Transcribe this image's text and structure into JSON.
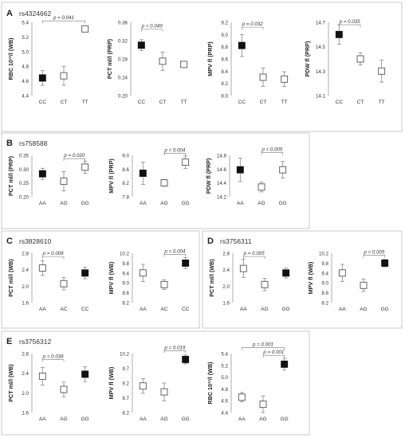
{
  "panels": [
    {
      "letter": "A",
      "snp": "rs4324662"
    },
    {
      "letter": "B",
      "snp": "rs758588"
    },
    {
      "letter": "C",
      "snp": "rs3828610"
    },
    {
      "letter": "D",
      "snp": "rs3756311"
    },
    {
      "letter": "E",
      "snp": "rs3756312"
    }
  ],
  "colors": {
    "filled": "#111111",
    "open": "#ffffff",
    "stroke": "#555555",
    "frame": "#c8c8c8",
    "error": "#888888"
  },
  "chart_data": [
    {
      "panel": "A",
      "type": "scatter",
      "categories": [
        "CC",
        "CT",
        "TT"
      ],
      "ylabel": "RBC 10¹²/l (WB)",
      "ylim": [
        4.4,
        5.4
      ],
      "yticks": [
        "4.4",
        "4.6",
        "4.8",
        "5.0",
        "5.2",
        "5.4"
      ],
      "points": [
        {
          "x": "CC",
          "y": 4.64,
          "err": 0.1,
          "filled": true
        },
        {
          "x": "CT",
          "y": 4.67,
          "err": 0.13,
          "filled": false
        },
        {
          "x": "TT",
          "y": 5.31,
          "err": 0,
          "filled": false
        }
      ],
      "annotations": [
        {
          "label": "p = 0.041",
          "from": "CC",
          "to": "TT",
          "y": 5.42
        }
      ]
    },
    {
      "panel": "A",
      "type": "scatter",
      "categories": [
        "CC",
        "CT",
        "TT"
      ],
      "ylabel": "PCT ml/l (PRP)",
      "ylim": [
        0.2,
        0.36
      ],
      "yticks": [
        "0.20",
        "0.24",
        "0.28",
        "0.32",
        "0.36"
      ],
      "points": [
        {
          "x": "CC",
          "y": 0.31,
          "err": 0.012,
          "filled": true
        },
        {
          "x": "CT",
          "y": 0.275,
          "err": 0.02,
          "filled": false
        },
        {
          "x": "TT",
          "y": 0.268,
          "err": 0,
          "filled": false
        }
      ],
      "annotations": [
        {
          "label": "p = 0.049",
          "from": "CC",
          "to": "CT",
          "y": 0.345
        }
      ]
    },
    {
      "panel": "A",
      "type": "scatter",
      "categories": [
        "CC",
        "CT",
        "TT"
      ],
      "ylabel": "MPV fl (PRP)",
      "ylim": [
        8.0,
        9.2
      ],
      "yticks": [
        "8.0",
        "8.2",
        "8.4",
        "8.6",
        "8.8",
        "9.0",
        "9.2"
      ],
      "points": [
        {
          "x": "CC",
          "y": 8.82,
          "err": 0.18,
          "filled": true
        },
        {
          "x": "CT",
          "y": 8.3,
          "err": 0.15,
          "filled": false
        },
        {
          "x": "TT",
          "y": 8.27,
          "err": 0.12,
          "filled": false
        }
      ],
      "annotations": [
        {
          "label": "p = 0.032",
          "from": "CC",
          "to": "CT",
          "y": 9.12
        }
      ]
    },
    {
      "panel": "A",
      "type": "scatter",
      "categories": [
        "CC",
        "CT",
        "TT"
      ],
      "ylabel": "PDW fl (PRP)",
      "ylim": [
        14.1,
        14.7
      ],
      "yticks": [
        "14.1",
        "14.3",
        "14.5",
        "14.7"
      ],
      "points": [
        {
          "x": "CC",
          "y": 14.6,
          "err": 0.08,
          "filled": true
        },
        {
          "x": "CT",
          "y": 14.4,
          "err": 0.05,
          "filled": false
        },
        {
          "x": "TT",
          "y": 14.3,
          "err": 0.09,
          "filled": false
        }
      ],
      "annotations": [
        {
          "label": "p = 0.035",
          "from": "CC",
          "to": "CT",
          "y": 14.68
        }
      ]
    },
    {
      "panel": "B",
      "type": "scatter",
      "categories": [
        "AA",
        "AG",
        "GG"
      ],
      "ylabel": "PCT ml/l (PRP)",
      "ylim": [
        0.2,
        0.35
      ],
      "yticks": [
        "0.20",
        "0.25",
        "0.30",
        "0.35"
      ],
      "points": [
        {
          "x": "AA",
          "y": 0.283,
          "err": 0.02,
          "filled": true
        },
        {
          "x": "AG",
          "y": 0.256,
          "err": 0.035,
          "filled": false
        },
        {
          "x": "GG",
          "y": 0.307,
          "err": 0.022,
          "filled": false
        }
      ],
      "annotations": [
        {
          "label": "p = 0.020",
          "from": "AG",
          "to": "GG",
          "y": 0.338
        }
      ]
    },
    {
      "panel": "B",
      "type": "scatter",
      "categories": [
        "AA",
        "AG",
        "GG"
      ],
      "ylabel": "MPV fl (PRP)",
      "ylim": [
        7.8,
        9.0
      ],
      "yticks": [
        "7.8",
        "8.2",
        "8.6",
        "9.0"
      ],
      "points": [
        {
          "x": "AA",
          "y": 8.48,
          "err": 0.32,
          "filled": true
        },
        {
          "x": "AG",
          "y": 8.2,
          "err": 0.1,
          "filled": false
        },
        {
          "x": "GG",
          "y": 8.8,
          "err": 0.18,
          "filled": false
        }
      ],
      "annotations": [
        {
          "label": "p = 0.004",
          "from": "AG",
          "to": "GG",
          "y": 9.06
        }
      ]
    },
    {
      "panel": "B",
      "type": "scatter",
      "categories": [
        "AA",
        "AG",
        "GG"
      ],
      "ylabel": "PDW fl (PRP)",
      "ylim": [
        14.2,
        14.8
      ],
      "yticks": [
        "14.2",
        "14.4",
        "14.6",
        "14.8"
      ],
      "points": [
        {
          "x": "AA",
          "y": 14.59,
          "err": 0.17,
          "filled": true
        },
        {
          "x": "AG",
          "y": 14.34,
          "err": 0.07,
          "filled": false
        },
        {
          "x": "GG",
          "y": 14.59,
          "err": 0.12,
          "filled": false
        }
      ],
      "annotations": [
        {
          "label": "p = 0.005",
          "from": "AG",
          "to": "GG",
          "y": 14.84
        }
      ]
    },
    {
      "panel": "C",
      "type": "scatter",
      "categories": [
        "AA",
        "AC",
        "CC"
      ],
      "ylabel": "PCT ml/l (WB)",
      "ylim": [
        1.6,
        2.8
      ],
      "yticks": [
        "1.6",
        "2.0",
        "2.4",
        "2.8"
      ],
      "points": [
        {
          "x": "AA",
          "y": 2.44,
          "err": 0.18,
          "filled": false
        },
        {
          "x": "AC",
          "y": 2.06,
          "err": 0.15,
          "filled": false
        },
        {
          "x": "CC",
          "y": 2.32,
          "err": 0.14,
          "filled": true
        }
      ],
      "annotations": [
        {
          "label": "p = 0.006",
          "from": "AA",
          "to": "AC",
          "y": 2.72
        }
      ]
    },
    {
      "panel": "C",
      "type": "scatter",
      "categories": [
        "AA",
        "AC",
        "CC"
      ],
      "ylabel": "MPV fl (WB)",
      "ylim": [
        8.2,
        10.2
      ],
      "yticks": [
        "8.2",
        "8.6",
        "9.0",
        "9.4",
        "9.8",
        "10.2"
      ],
      "points": [
        {
          "x": "AA",
          "y": 9.4,
          "err": 0.35,
          "filled": false
        },
        {
          "x": "AC",
          "y": 8.93,
          "err": 0.2,
          "filled": false
        },
        {
          "x": "CC",
          "y": 9.8,
          "err": 0.22,
          "filled": true
        }
      ],
      "annotations": [
        {
          "label": "p = 0.004",
          "from": "AC",
          "to": "CC",
          "y": 10.15
        }
      ]
    },
    {
      "panel": "D",
      "type": "scatter",
      "categories": [
        "AA",
        "AG",
        "GG"
      ],
      "ylabel": "PCT ml/l (WB)",
      "ylim": [
        1.6,
        2.8
      ],
      "yticks": [
        "1.6",
        "2.0",
        "2.4",
        "2.8"
      ],
      "points": [
        {
          "x": "AA",
          "y": 2.43,
          "err": 0.22,
          "filled": false
        },
        {
          "x": "AG",
          "y": 2.04,
          "err": 0.15,
          "filled": false
        },
        {
          "x": "GG",
          "y": 2.32,
          "err": 0.12,
          "filled": true
        }
      ],
      "annotations": [
        {
          "label": "p = 0.005",
          "from": "AA",
          "to": "AG",
          "y": 2.72
        }
      ]
    },
    {
      "panel": "D",
      "type": "scatter",
      "categories": [
        "AA",
        "AG",
        "GG"
      ],
      "ylabel": "MPV fl (WB)",
      "ylim": [
        8.2,
        10.2
      ],
      "yticks": [
        "8.2",
        "8.6",
        "9.0",
        "9.4",
        "9.8",
        "10.2"
      ],
      "points": [
        {
          "x": "AA",
          "y": 9.4,
          "err": 0.35,
          "filled": false
        },
        {
          "x": "AG",
          "y": 8.9,
          "err": 0.25,
          "filled": false
        },
        {
          "x": "GG",
          "y": 9.8,
          "err": 0.15,
          "filled": true
        }
      ],
      "annotations": [
        {
          "label": "p = 0.005",
          "from": "AG",
          "to": "GG",
          "y": 10.12
        }
      ]
    },
    {
      "panel": "E",
      "type": "scatter",
      "categories": [
        "AA",
        "AG",
        "GG"
      ],
      "ylabel": "PCT ml/l (WB)",
      "ylim": [
        1.6,
        2.8
      ],
      "yticks": [
        "1.6",
        "2.0",
        "2.4",
        "2.8"
      ],
      "points": [
        {
          "x": "AA",
          "y": 2.34,
          "err": 0.18,
          "filled": false
        },
        {
          "x": "AG",
          "y": 2.07,
          "err": 0.15,
          "filled": false
        },
        {
          "x": "GG",
          "y": 2.38,
          "err": 0.15,
          "filled": true
        }
      ],
      "annotations": [
        {
          "label": "p = 0.036",
          "from": "AA",
          "to": "AG",
          "y": 2.68
        }
      ]
    },
    {
      "panel": "E",
      "type": "scatter",
      "categories": [
        "AA",
        "AG",
        "GG"
      ],
      "ylabel": "MPV fl (WB)",
      "ylim": [
        8.2,
        10.2
      ],
      "yticks": [
        "8.2",
        "8.7",
        "9.2",
        "9.7",
        "10.2"
      ],
      "points": [
        {
          "x": "AA",
          "y": 9.1,
          "err": 0.25,
          "filled": false
        },
        {
          "x": "AG",
          "y": 8.9,
          "err": 0.3,
          "filled": false
        },
        {
          "x": "GG",
          "y": 10.0,
          "err": 0.15,
          "filled": true
        }
      ],
      "annotations": [
        {
          "label": "p = 0.019",
          "from": "AG",
          "to": "GG",
          "y": 10.3
        }
      ]
    },
    {
      "panel": "E",
      "type": "scatter",
      "categories": [
        "AA",
        "AG",
        "GG"
      ],
      "ylabel": "RBC 10¹²/l (WB)",
      "ylim": [
        4.4,
        5.4
      ],
      "yticks": [
        "4.4",
        "4.6",
        "4.8",
        "5.0",
        "5.2",
        "5.4"
      ],
      "points": [
        {
          "x": "AA",
          "y": 4.66,
          "err": 0.08,
          "filled": false
        },
        {
          "x": "AG",
          "y": 4.54,
          "err": 0.14,
          "filled": false
        },
        {
          "x": "GG",
          "y": 5.22,
          "err": 0.1,
          "filled": true
        }
      ],
      "annotations": [
        {
          "label": "p = 0.001",
          "from": "AA",
          "to": "GG",
          "y": 5.5
        },
        {
          "label": "p = 0.001",
          "from": "AG",
          "to": "GG",
          "y": 5.37
        }
      ]
    }
  ]
}
